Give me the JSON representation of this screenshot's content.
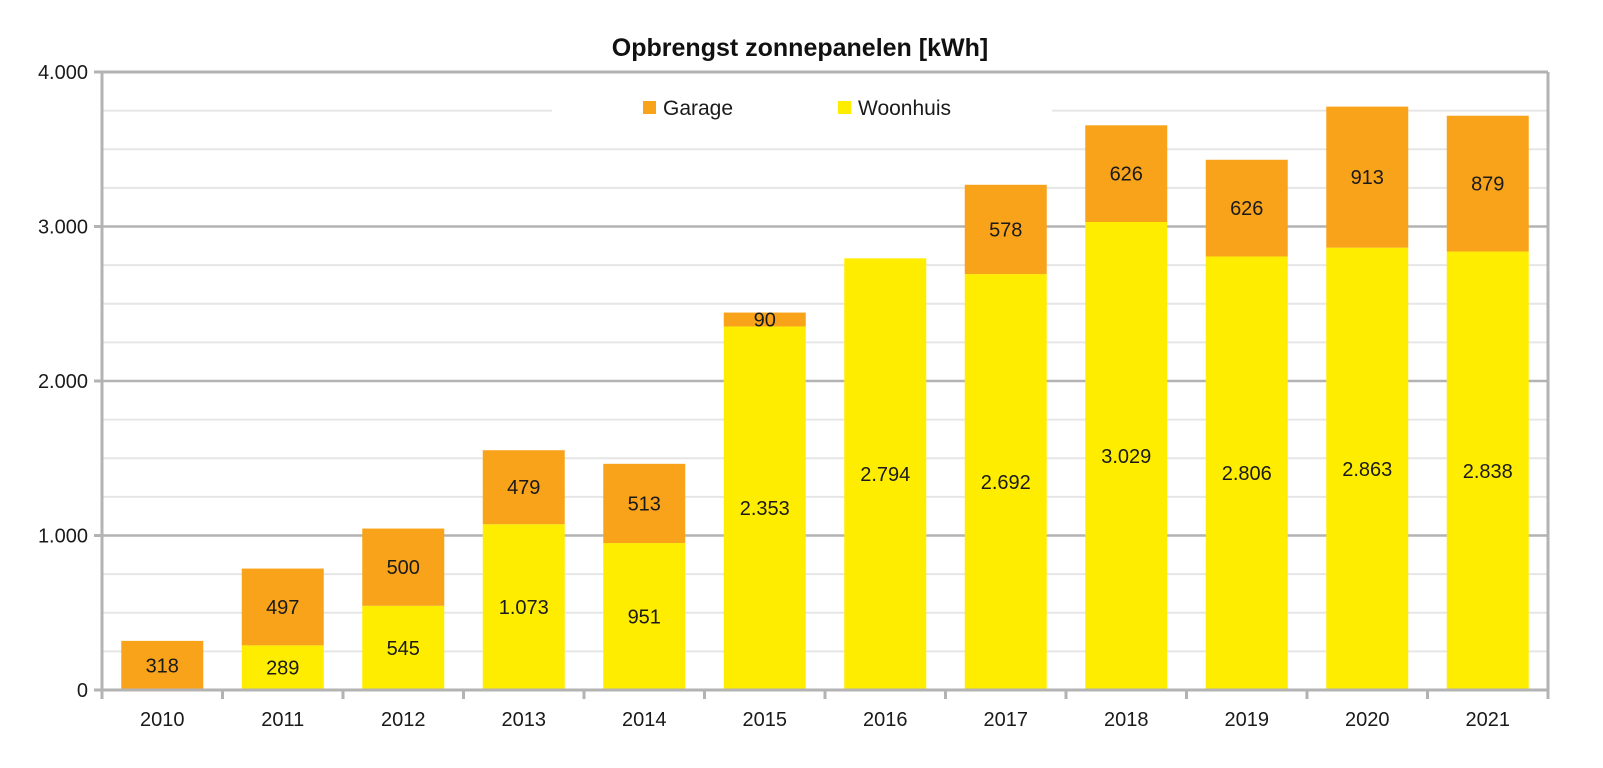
{
  "chart_data": {
    "type": "bar",
    "stacked": true,
    "title": "Opbrengst zonnepanelen [kWh]",
    "xlabel": "",
    "ylabel": "",
    "categories": [
      "2010",
      "2011",
      "2012",
      "2013",
      "2014",
      "2015",
      "2016",
      "2017",
      "2018",
      "2019",
      "2020",
      "2021"
    ],
    "series": [
      {
        "name": "Woonhuis",
        "color": "#FFED00",
        "values": [
          0,
          289,
          545,
          1073,
          951,
          2353,
          2794,
          2692,
          3029,
          2806,
          2863,
          2838
        ],
        "labels": [
          "",
          "289",
          "545",
          "1.073",
          "951",
          "2.353",
          "2.794",
          "2.692",
          "3.029",
          "2.806",
          "2.863",
          "2.838"
        ]
      },
      {
        "name": "Garage",
        "color": "#F9A31B",
        "values": [
          318,
          497,
          500,
          479,
          513,
          90,
          0,
          578,
          626,
          626,
          913,
          879
        ],
        "labels": [
          "318",
          "497",
          "500",
          "479",
          "513",
          "90",
          "",
          "578",
          "626",
          "626",
          "913",
          "879"
        ]
      }
    ],
    "legend_order": [
      "Garage",
      "Woonhuis"
    ],
    "legend_position": "top-center",
    "ylim": [
      0,
      4000
    ],
    "yticks": [
      0,
      1000,
      2000,
      3000,
      4000
    ],
    "ytick_labels": [
      "0",
      "1.000",
      "2.000",
      "3.000",
      "4.000"
    ],
    "minor_grid_step": 250,
    "grid": true,
    "colors": {
      "major_grid": "#B3B3B3",
      "minor_grid": "#E6E6E6",
      "axis": "#B3B3B3"
    }
  }
}
